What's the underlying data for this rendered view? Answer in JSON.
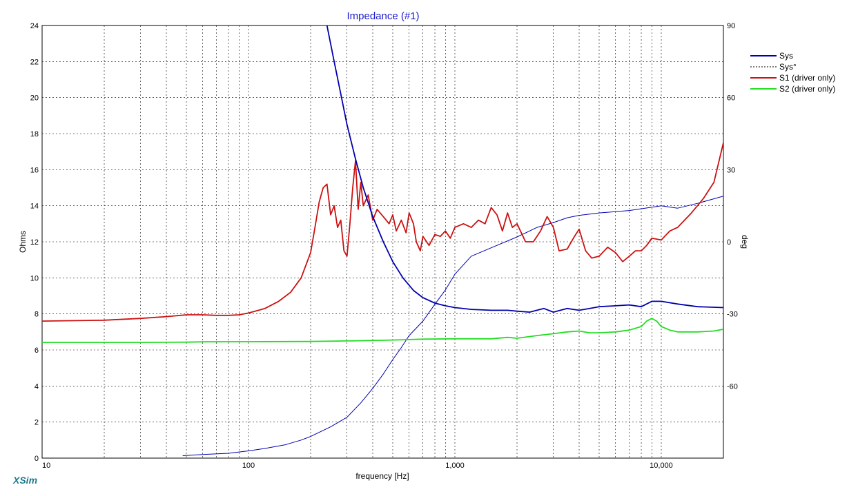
{
  "chart_data": {
    "type": "line",
    "title": "Impedance (#1)",
    "xlabel": "frequency [Hz]",
    "ylabel": "Ohms",
    "y2label": "deg",
    "x_scale": "log",
    "xlim": [
      10,
      20000
    ],
    "ylim": [
      0,
      24
    ],
    "y2lim": [
      -90,
      90
    ],
    "x_ticks": [
      10,
      100,
      1000,
      10000
    ],
    "x_tick_labels": [
      "10",
      "100",
      "1,000",
      "10,000"
    ],
    "y_ticks": [
      0,
      2,
      4,
      6,
      8,
      10,
      12,
      14,
      16,
      18,
      20,
      22,
      24
    ],
    "y2_ticks": [
      90,
      60,
      30,
      0,
      -30,
      -60
    ],
    "grid": true,
    "legend_position": "right",
    "brand": "XSim",
    "series": [
      {
        "name": "Sys",
        "axis": "left",
        "color": "#0000b0",
        "style": "solid",
        "x": [
          240,
          260,
          280,
          300,
          330,
          360,
          400,
          450,
          500,
          560,
          630,
          700,
          800,
          900,
          1000,
          1200,
          1500,
          1800,
          2000,
          2300,
          2700,
          3000,
          3500,
          4000,
          4500,
          5000,
          6000,
          7000,
          8000,
          9000,
          10000,
          12000,
          15000,
          20000
        ],
        "y": [
          24.0,
          22.0,
          20.2,
          18.5,
          16.6,
          15.0,
          13.4,
          12.0,
          10.9,
          10.0,
          9.3,
          8.9,
          8.6,
          8.45,
          8.35,
          8.25,
          8.2,
          8.2,
          8.15,
          8.1,
          8.3,
          8.1,
          8.3,
          8.2,
          8.3,
          8.4,
          8.45,
          8.5,
          8.4,
          8.7,
          8.7,
          8.55,
          8.4,
          8.35
        ]
      },
      {
        "name": "Sys°",
        "axis": "right",
        "color": "#0000b0",
        "style": "thin",
        "x": [
          48,
          60,
          80,
          100,
          120,
          150,
          180,
          200,
          250,
          300,
          350,
          400,
          450,
          500,
          550,
          600,
          700,
          800,
          900,
          1000,
          1200,
          1500,
          2000,
          2500,
          3000,
          3500,
          4000,
          5000,
          7000,
          10000,
          12000,
          15000,
          20000
        ],
        "y": [
          -89,
          -88.5,
          -88,
          -87,
          -86,
          -84.5,
          -82.5,
          -81,
          -77,
          -73,
          -67,
          -61,
          -55,
          -49,
          -44,
          -39,
          -33,
          -26,
          -20,
          -13.5,
          -6,
          -2.5,
          2,
          6,
          8,
          10,
          11,
          12,
          13,
          15,
          14,
          16,
          19
        ]
      },
      {
        "name": "S1 (driver only)",
        "axis": "left",
        "color": "#cc1111",
        "style": "solid",
        "x": [
          10,
          20,
          30,
          40,
          50,
          60,
          70,
          80,
          90,
          100,
          120,
          140,
          160,
          180,
          200,
          210,
          220,
          230,
          240,
          250,
          260,
          270,
          280,
          290,
          300,
          310,
          320,
          330,
          340,
          350,
          360,
          380,
          400,
          420,
          450,
          480,
          500,
          520,
          550,
          580,
          600,
          630,
          650,
          680,
          700,
          750,
          800,
          850,
          900,
          950,
          1000,
          1100,
          1200,
          1300,
          1400,
          1500,
          1600,
          1700,
          1800,
          1900,
          2000,
          2200,
          2400,
          2600,
          2800,
          3000,
          3200,
          3500,
          3800,
          4000,
          4300,
          4600,
          5000,
          5500,
          6000,
          6500,
          7000,
          7500,
          8000,
          8500,
          9000,
          10000,
          11000,
          12000,
          14000,
          16000,
          18000,
          20000
        ],
        "y": [
          7.6,
          7.65,
          7.75,
          7.85,
          7.95,
          7.95,
          7.92,
          7.92,
          7.95,
          8.05,
          8.3,
          8.7,
          9.2,
          10.0,
          11.4,
          12.8,
          14.2,
          15.0,
          15.2,
          13.5,
          14.0,
          12.8,
          13.2,
          11.5,
          11.2,
          13.0,
          15.0,
          16.5,
          13.8,
          15.3,
          14.0,
          14.6,
          13.2,
          13.8,
          13.4,
          13.0,
          13.5,
          12.6,
          13.2,
          12.5,
          13.6,
          13.0,
          12.0,
          11.5,
          12.3,
          11.8,
          12.4,
          12.3,
          12.6,
          12.2,
          12.8,
          13.0,
          12.8,
          13.2,
          13.0,
          13.9,
          13.5,
          12.6,
          13.6,
          12.8,
          13.0,
          12.0,
          12.0,
          12.6,
          13.4,
          12.8,
          11.5,
          11.6,
          12.3,
          12.7,
          11.5,
          11.1,
          11.2,
          11.7,
          11.4,
          10.9,
          11.2,
          11.5,
          11.5,
          11.8,
          12.2,
          12.1,
          12.6,
          12.8,
          13.6,
          14.4,
          15.3,
          17.5
        ]
      },
      {
        "name": "S2 (driver only)",
        "axis": "left",
        "color": "#22dd22",
        "style": "solid",
        "x": [
          10,
          30,
          50,
          60,
          100,
          200,
          300,
          500,
          700,
          1000,
          1500,
          1800,
          2000,
          2500,
          3000,
          3500,
          4000,
          4500,
          5000,
          6000,
          7000,
          8000,
          8500,
          9000,
          9500,
          10000,
          11000,
          12000,
          15000,
          18000,
          20000
        ],
        "y": [
          6.42,
          6.42,
          6.43,
          6.45,
          6.46,
          6.47,
          6.5,
          6.55,
          6.6,
          6.62,
          6.62,
          6.7,
          6.65,
          6.8,
          6.9,
          7.0,
          7.05,
          6.95,
          6.95,
          7.0,
          7.1,
          7.3,
          7.6,
          7.75,
          7.6,
          7.3,
          7.1,
          7.0,
          7.0,
          7.05,
          7.15
        ]
      }
    ]
  }
}
